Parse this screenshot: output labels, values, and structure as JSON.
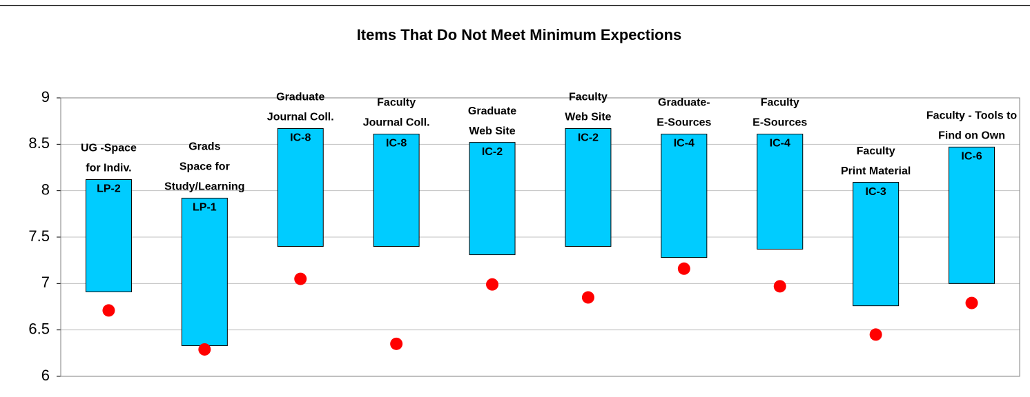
{
  "chart_data": {
    "type": "floating-bar",
    "title": "Items That Do Not Meet Minimum Expections",
    "categories": [
      [
        "UG -Space",
        "for Indiv."
      ],
      [
        "Grads",
        "Space for",
        "Study/Learning"
      ],
      [
        "Graduate",
        "Journal Coll."
      ],
      [
        "Faculty",
        "Journal Coll."
      ],
      [
        "Graduate",
        "Web Site"
      ],
      [
        "Faculty",
        "Web Site"
      ],
      [
        "Graduate-",
        "E-Sources"
      ],
      [
        "Faculty",
        "E-Sources"
      ],
      [
        "Faculty",
        "Print Material"
      ],
      [
        "Faculty - Tools to",
        "Find on Own"
      ]
    ],
    "codes": [
      "LP-2",
      "LP-1",
      "IC-8",
      "IC-8",
      "IC-2",
      "IC-2",
      "IC-4",
      "IC-4",
      "IC-3",
      "IC-6"
    ],
    "low": [
      6.91,
      6.33,
      7.4,
      7.4,
      7.31,
      7.4,
      7.28,
      7.37,
      6.76,
      7.0
    ],
    "high": [
      8.12,
      7.92,
      8.67,
      8.61,
      8.52,
      8.67,
      8.61,
      8.61,
      8.09,
      8.47
    ],
    "points": [
      6.71,
      6.29,
      7.05,
      6.35,
      6.99,
      6.85,
      7.16,
      6.97,
      6.45,
      6.79
    ],
    "bar_color": "#00ccff",
    "point_color": "#ff0000",
    "ylim": [
      6,
      9
    ],
    "yticks": [
      6,
      6.5,
      7,
      7.5,
      8,
      8.5,
      9
    ],
    "grid": true
  }
}
